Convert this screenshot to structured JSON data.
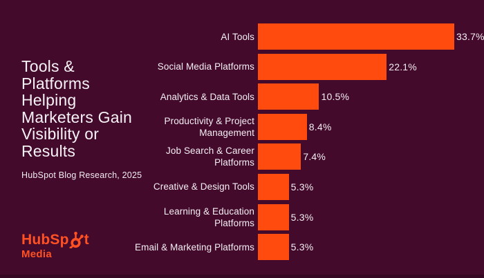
{
  "page": {
    "background": "#430a2c"
  },
  "colors": {
    "background": "#430a2c",
    "bar": "#ff4b0d",
    "text": "#f7f2f5",
    "logo": "#ff5123"
  },
  "left_panel": {
    "title": "Tools &\nPlatforms\nHelping\nMarketers Gain\nVisibility or\nResults",
    "source": "HubSpot Blog Research, 2025",
    "logo": {
      "full_text": "HubSpot Media",
      "part1": "HubSp",
      "part2": "t",
      "subtext": "Media"
    }
  },
  "chart_data": {
    "type": "bar",
    "orientation": "horizontal",
    "title": "Tools & Platforms Helping Marketers Gain Visibility or Results",
    "xlabel": "",
    "ylabel": "",
    "unit": "%",
    "xlim": [
      0,
      35
    ],
    "grid": false,
    "legend": false,
    "bar_color": "#ff4b0d",
    "categories": [
      "AI Tools",
      "Social Media Platforms",
      "Analytics & Data Tools",
      "Productivity & Project Management",
      "Job Search & Career Platforms",
      "Creative & Design Tools",
      "Learning & Education Platforms",
      "Email & Marketing Platforms"
    ],
    "category_labels": [
      "AI Tools",
      "Social Media Platforms",
      "Analytics & Data Tools",
      "Productivity & Project\nManagement",
      "Job Search & Career\nPlatforms",
      "Creative & Design Tools",
      "Learning & Education\nPlatforms",
      "Email & Marketing Platforms"
    ],
    "values": [
      33.7,
      22.1,
      10.5,
      8.4,
      7.4,
      5.3,
      5.3,
      5.3
    ],
    "value_labels": [
      "33.7%",
      "22.1%",
      "10.5%",
      "8.4%",
      "7.4%",
      "5.3%",
      "5.3%",
      "5.3%"
    ]
  }
}
